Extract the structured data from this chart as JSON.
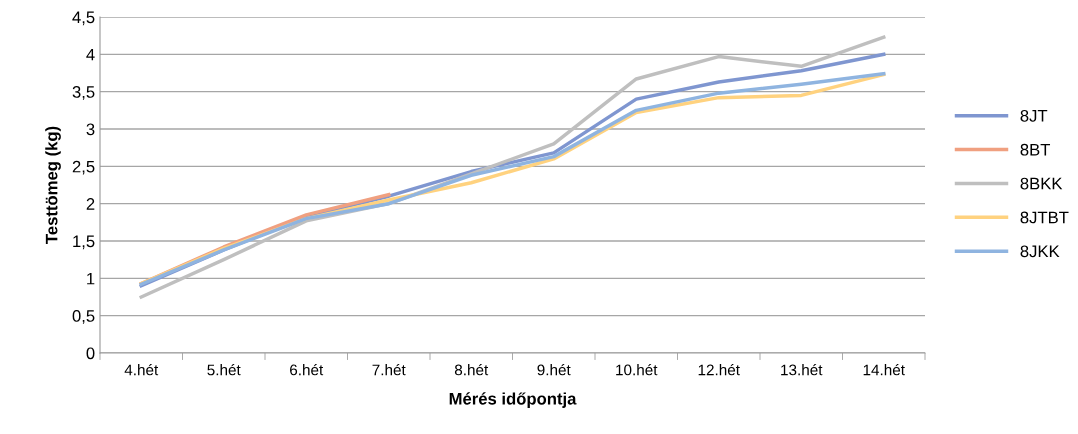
{
  "chart_data": {
    "type": "line",
    "xlabel": "Mérés időpontja",
    "ylabel": "Testtömeg (kg)",
    "categories": [
      "4.hét",
      "5.hét",
      "6.hét",
      "7.hét",
      "8.hét",
      "9.hét",
      "10.hét",
      "12.hét",
      "13.hét",
      "14.hét"
    ],
    "series": [
      {
        "name": "8JT",
        "color": "#7f96d0",
        "values": [
          0.9,
          1.38,
          1.83,
          2.1,
          2.43,
          2.68,
          3.4,
          3.63,
          3.78,
          4.0
        ]
      },
      {
        "name": "8BT",
        "color": "#f0a080",
        "values": [
          0.93,
          1.42,
          1.85,
          2.12,
          null,
          null,
          null,
          null,
          null,
          null
        ]
      },
      {
        "name": "8BKK",
        "color": "#bfbfbf",
        "values": [
          0.75,
          1.25,
          1.77,
          2.0,
          2.4,
          2.8,
          3.67,
          3.97,
          3.84,
          4.23
        ]
      },
      {
        "name": "8JTBT",
        "color": "#ffd27f",
        "values": [
          0.93,
          1.4,
          1.8,
          2.05,
          2.28,
          2.6,
          3.22,
          3.42,
          3.45,
          3.73
        ]
      },
      {
        "name": "8JKK",
        "color": "#8fb4e0",
        "values": [
          0.92,
          1.38,
          1.8,
          2.0,
          2.38,
          2.63,
          3.25,
          3.48,
          3.6,
          3.74
        ]
      }
    ],
    "ylim": [
      0,
      4.5
    ],
    "yticks": [
      0,
      {
        "value": 0.5,
        "label": "0,5"
      },
      1,
      {
        "value": 1.5,
        "label": "1,5"
      },
      2,
      {
        "value": 2.5,
        "label": "2,5"
      },
      3,
      {
        "value": 3.5,
        "label": "3,5"
      },
      4,
      {
        "value": 4.5,
        "label": "4,5"
      }
    ],
    "grid": "y",
    "legend": "right",
    "marker": "none"
  }
}
